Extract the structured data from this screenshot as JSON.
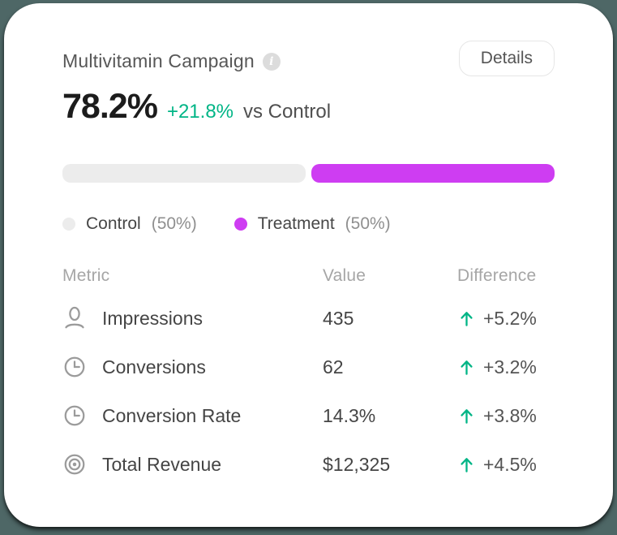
{
  "theme": {
    "page_bg": "#4e6766",
    "card_bg": "#ffffff",
    "treatment_color": "#ce3df2",
    "control_color": "#ececec",
    "positive_color": "#00b586"
  },
  "header": {
    "title": "Multivitamin Campaign",
    "info_glyph": "i",
    "details_label": "Details"
  },
  "summary": {
    "primary_value": "78.2%",
    "delta": "+21.8%",
    "delta_suffix": "vs Control"
  },
  "split_bar": {
    "control_pct": 50,
    "treatment_pct": 50
  },
  "legend": [
    {
      "label": "Control",
      "share": "(50%)",
      "color": "#ececec"
    },
    {
      "label": "Treatment",
      "share": "(50%)",
      "color": "#ce3df2"
    }
  ],
  "table": {
    "columns": [
      "Metric",
      "Value",
      "Difference"
    ],
    "rows": [
      {
        "icon": "person-icon",
        "metric": "Impressions",
        "value": "435",
        "difference": "+5.2%",
        "trend": "up"
      },
      {
        "icon": "clock-icon",
        "metric": "Conversions",
        "value": "62",
        "difference": "+3.2%",
        "trend": "up"
      },
      {
        "icon": "clock-icon",
        "metric": "Conversion Rate",
        "value": "14.3%",
        "difference": "+3.8%",
        "trend": "up"
      },
      {
        "icon": "target-icon",
        "metric": "Total Revenue",
        "value": "$12,325",
        "difference": "+4.5%",
        "trend": "up"
      }
    ]
  }
}
